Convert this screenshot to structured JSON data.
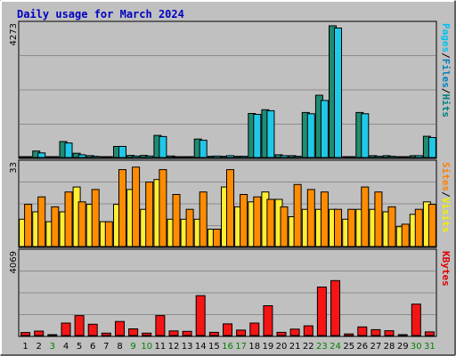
{
  "chart_data": {
    "type": "bar",
    "title": "Daily usage for March 2024",
    "categories": [
      "1",
      "2",
      "3",
      "4",
      "5",
      "6",
      "7",
      "8",
      "9",
      "10",
      "11",
      "12",
      "13",
      "14",
      "15",
      "16",
      "17",
      "18",
      "19",
      "20",
      "21",
      "22",
      "23",
      "24",
      "25",
      "26",
      "27",
      "28",
      "29",
      "30",
      "31"
    ],
    "weekend_days": [
      "3",
      "9",
      "10",
      "16",
      "17",
      "23",
      "24",
      "30",
      "31"
    ],
    "panels": [
      {
        "name": "top",
        "axis_max_label": "4273",
        "ymax": 4273,
        "side_labels": [
          {
            "text": "Pages",
            "color": "#00c0f0"
          },
          {
            "text": "/",
            "color": "#000000"
          },
          {
            "text": "Files",
            "color": "#0080c0"
          },
          {
            "text": "/",
            "color": "#000000"
          },
          {
            "text": "Hits",
            "color": "#008080"
          }
        ],
        "series": [
          {
            "name": "Hits",
            "color": "#1e8c72",
            "values": [
              30,
              210,
              30,
              520,
              140,
              60,
              30,
              360,
              70,
              70,
              720,
              50,
              30,
              600,
              40,
              40,
              40,
              1430,
              1550,
              90,
              60,
              1460,
              2020,
              4273,
              30,
              1460,
              60,
              60,
              30,
              60,
              690
            ]
          },
          {
            "name": "Files",
            "color": "#20c8e8",
            "values": [
              30,
              150,
              30,
              470,
              90,
              40,
              30,
              360,
              50,
              50,
              680,
              30,
              30,
              560,
              50,
              60,
              40,
              1400,
              1520,
              60,
              40,
              1420,
              1850,
              4200,
              30,
              1420,
              40,
              40,
              30,
              60,
              650
            ]
          }
        ]
      },
      {
        "name": "middle",
        "axis_max_label": "33",
        "ymax": 33,
        "side_labels": [
          {
            "text": "Sites",
            "color": "#ff8000"
          },
          {
            "text": "/",
            "color": "#000000"
          },
          {
            "text": "Visits",
            "color": "#f0f000"
          }
        ],
        "series": [
          {
            "name": "Visits",
            "color": "#ffee33",
            "values": [
              11,
              14,
              10,
              14,
              24,
              17,
              10,
              17,
              23,
              15,
              27,
              11,
              11,
              11,
              7,
              24,
              16,
              18,
              22,
              19,
              12,
              15,
              15,
              15,
              11,
              15,
              15,
              14,
              8,
              13,
              18
            ]
          },
          {
            "name": "Sites",
            "color": "#ff8c00",
            "values": [
              17,
              20,
              16,
              22,
              18,
              23,
              10,
              31,
              32,
              26,
              31,
              21,
              15,
              22,
              7,
              31,
              21,
              20,
              19,
              16,
              25,
              23,
              22,
              15,
              15,
              24,
              22,
              16,
              9,
              15,
              17
            ]
          }
        ]
      },
      {
        "name": "bottom",
        "axis_max_label": "4069",
        "ymax": 4069,
        "side_labels": [
          {
            "text": "KBytes",
            "color": "#e00000"
          }
        ],
        "series": [
          {
            "name": "KBytes",
            "color": "#f51515",
            "values": [
              150,
              220,
              40,
              620,
              990,
              560,
              120,
              700,
              330,
              120,
              990,
              230,
              210,
              1980,
              160,
              580,
              270,
              620,
              1480,
              160,
              320,
              480,
              2410,
              2730,
              80,
              430,
              290,
              240,
              40,
              1560,
              180
            ]
          }
        ]
      }
    ]
  }
}
